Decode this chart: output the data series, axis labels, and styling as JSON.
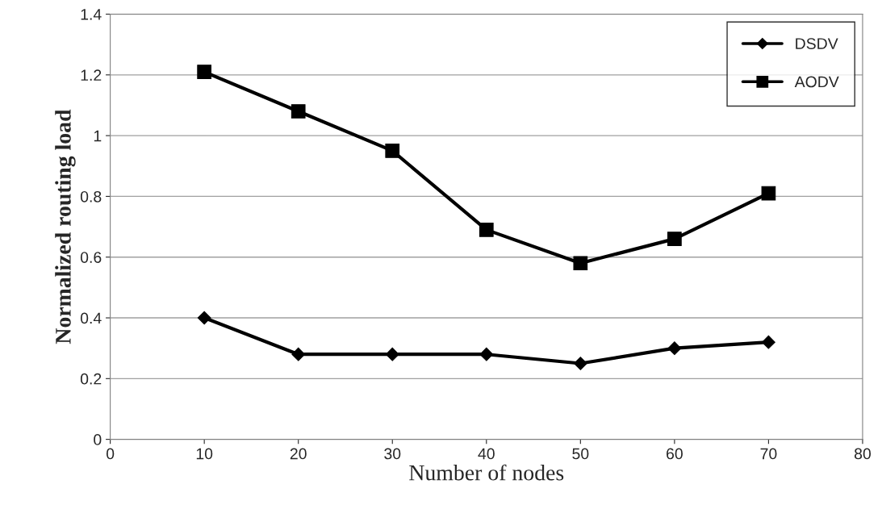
{
  "chart_data": {
    "type": "line",
    "xlabel": "Number of nodes",
    "ylabel": "Normalized routing load",
    "x": [
      10,
      20,
      30,
      40,
      50,
      60,
      70
    ],
    "series": [
      {
        "name": "DSDV",
        "color": "#000000",
        "marker": "diamond",
        "values": [
          0.4,
          0.28,
          0.28,
          0.28,
          0.25,
          0.3,
          0.32
        ]
      },
      {
        "name": "AODV",
        "color": "#000000",
        "marker": "square",
        "values": [
          1.21,
          1.08,
          0.95,
          0.69,
          0.58,
          0.66,
          0.81
        ]
      }
    ],
    "xlim": [
      0,
      80
    ],
    "xticks": [
      0,
      10,
      20,
      30,
      40,
      50,
      60,
      70,
      80
    ],
    "ylim": [
      0,
      1.4
    ],
    "yticks": [
      0,
      0.2,
      0.4,
      0.6,
      0.8,
      1,
      1.2,
      1.4
    ],
    "grid": "y",
    "legend": "top right",
    "line_style": "solid"
  }
}
